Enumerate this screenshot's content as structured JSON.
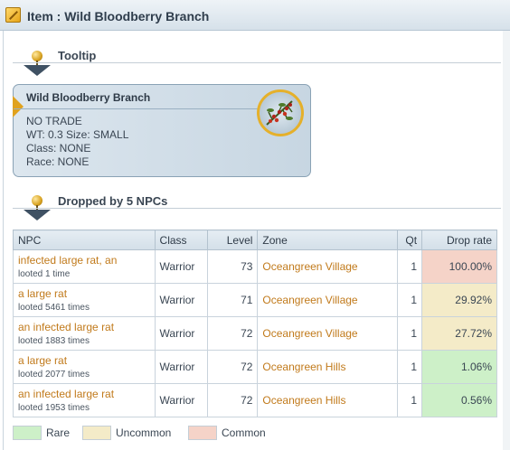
{
  "window": {
    "title": "Item : Wild Bloodberry Branch"
  },
  "sections": {
    "tooltip_title": "Tooltip",
    "dropped_title": "Dropped by 5 NPCs"
  },
  "tooltip": {
    "name": "Wild Bloodberry Branch",
    "lines": [
      "NO TRADE",
      "WT: 0.3 Size: SMALL",
      "Class: NONE",
      "Race: NONE"
    ],
    "icon": "bloodberry-branch-icon"
  },
  "table": {
    "headers": [
      "NPC",
      "Class",
      "Level",
      "Zone",
      "Qt",
      "Drop rate"
    ],
    "rows": [
      {
        "npc": "infected large rat, an",
        "looted": "looted 1 time",
        "class": "Warrior",
        "level": "73",
        "zone": "Oceangreen Village",
        "qt": "1",
        "rate": "100.00%",
        "tier": "common"
      },
      {
        "npc": "a large rat",
        "looted": "looted 5461 times",
        "class": "Warrior",
        "level": "71",
        "zone": "Oceangreen Village",
        "qt": "1",
        "rate": "29.92%",
        "tier": "uncommon"
      },
      {
        "npc": "an infected large rat",
        "looted": "looted 1883 times",
        "class": "Warrior",
        "level": "72",
        "zone": "Oceangreen Village",
        "qt": "1",
        "rate": "27.72%",
        "tier": "uncommon"
      },
      {
        "npc": "a large rat",
        "looted": "looted 2077 times",
        "class": "Warrior",
        "level": "72",
        "zone": "Oceangreen Hills",
        "qt": "1",
        "rate": "1.06%",
        "tier": "rare"
      },
      {
        "npc": "an infected large rat",
        "looted": "looted 1953 times",
        "class": "Warrior",
        "level": "72",
        "zone": "Oceangreen Hills",
        "qt": "1",
        "rate": "0.56%",
        "tier": "rare"
      }
    ]
  },
  "legend": [
    {
      "label": "Rare",
      "color": "#cdf0c8"
    },
    {
      "label": "Uncommon",
      "color": "#f4ebc8"
    },
    {
      "label": "Common",
      "color": "#f5d3c8"
    }
  ],
  "colors": {
    "accent": "#c17a1b",
    "header_bg": "#d3dfe8"
  }
}
